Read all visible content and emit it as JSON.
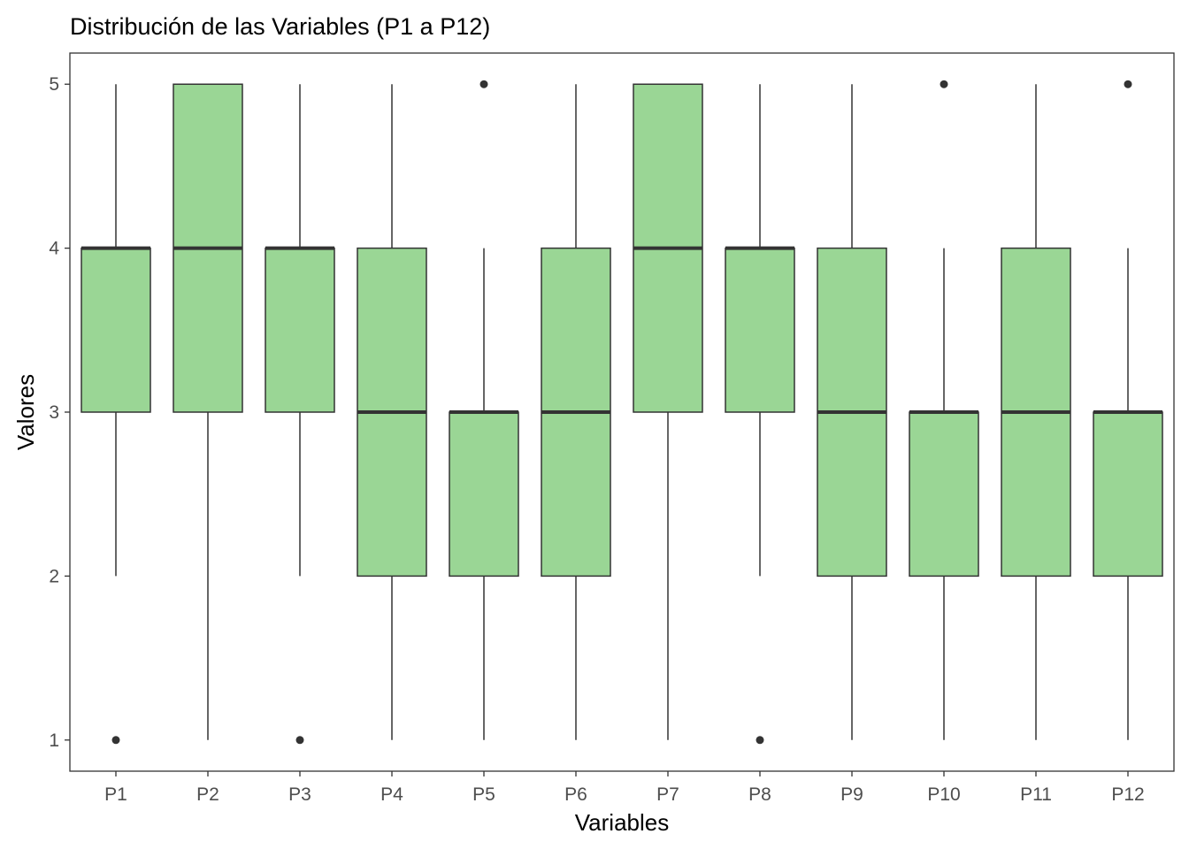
{
  "chart_data": {
    "type": "boxplot",
    "title": "Distribución de las Variables (P1 a P12)",
    "xlabel": "Variables",
    "ylabel": "Valores",
    "categories": [
      "P1",
      "P2",
      "P3",
      "P4",
      "P5",
      "P6",
      "P7",
      "P8",
      "P9",
      "P10",
      "P11",
      "P12"
    ],
    "ylim": [
      0.81,
      5.19
    ],
    "yticks": [
      1,
      2,
      3,
      4,
      5
    ],
    "ytick_labels": [
      "1",
      "2",
      "3",
      "4",
      "5"
    ],
    "grid": false,
    "legend": "none",
    "fill_color": "#9AD695",
    "line_color": "#333333",
    "boxes": [
      {
        "name": "P1",
        "whisker_low": 2,
        "q1": 3,
        "median": 4,
        "q3": 4,
        "whisker_high": 5,
        "outliers": [
          1
        ]
      },
      {
        "name": "P2",
        "whisker_low": 1,
        "q1": 3,
        "median": 4,
        "q3": 5,
        "whisker_high": 5,
        "outliers": []
      },
      {
        "name": "P3",
        "whisker_low": 2,
        "q1": 3,
        "median": 4,
        "q3": 4,
        "whisker_high": 5,
        "outliers": [
          1
        ]
      },
      {
        "name": "P4",
        "whisker_low": 1,
        "q1": 2,
        "median": 3,
        "q3": 4,
        "whisker_high": 5,
        "outliers": []
      },
      {
        "name": "P5",
        "whisker_low": 1,
        "q1": 2,
        "median": 3,
        "q3": 3,
        "whisker_high": 4,
        "outliers": [
          5
        ]
      },
      {
        "name": "P6",
        "whisker_low": 1,
        "q1": 2,
        "median": 3,
        "q3": 4,
        "whisker_high": 5,
        "outliers": []
      },
      {
        "name": "P7",
        "whisker_low": 1,
        "q1": 3,
        "median": 4,
        "q3": 5,
        "whisker_high": 5,
        "outliers": []
      },
      {
        "name": "P8",
        "whisker_low": 2,
        "q1": 3,
        "median": 4,
        "q3": 4,
        "whisker_high": 5,
        "outliers": [
          1
        ]
      },
      {
        "name": "P9",
        "whisker_low": 1,
        "q1": 2,
        "median": 3,
        "q3": 4,
        "whisker_high": 5,
        "outliers": []
      },
      {
        "name": "P10",
        "whisker_low": 1,
        "q1": 2,
        "median": 3,
        "q3": 3,
        "whisker_high": 4,
        "outliers": [
          5
        ]
      },
      {
        "name": "P11",
        "whisker_low": 1,
        "q1": 2,
        "median": 3,
        "q3": 4,
        "whisker_high": 5,
        "outliers": []
      },
      {
        "name": "P12",
        "whisker_low": 1,
        "q1": 2,
        "median": 3,
        "q3": 3,
        "whisker_high": 4,
        "outliers": [
          5
        ]
      }
    ]
  }
}
